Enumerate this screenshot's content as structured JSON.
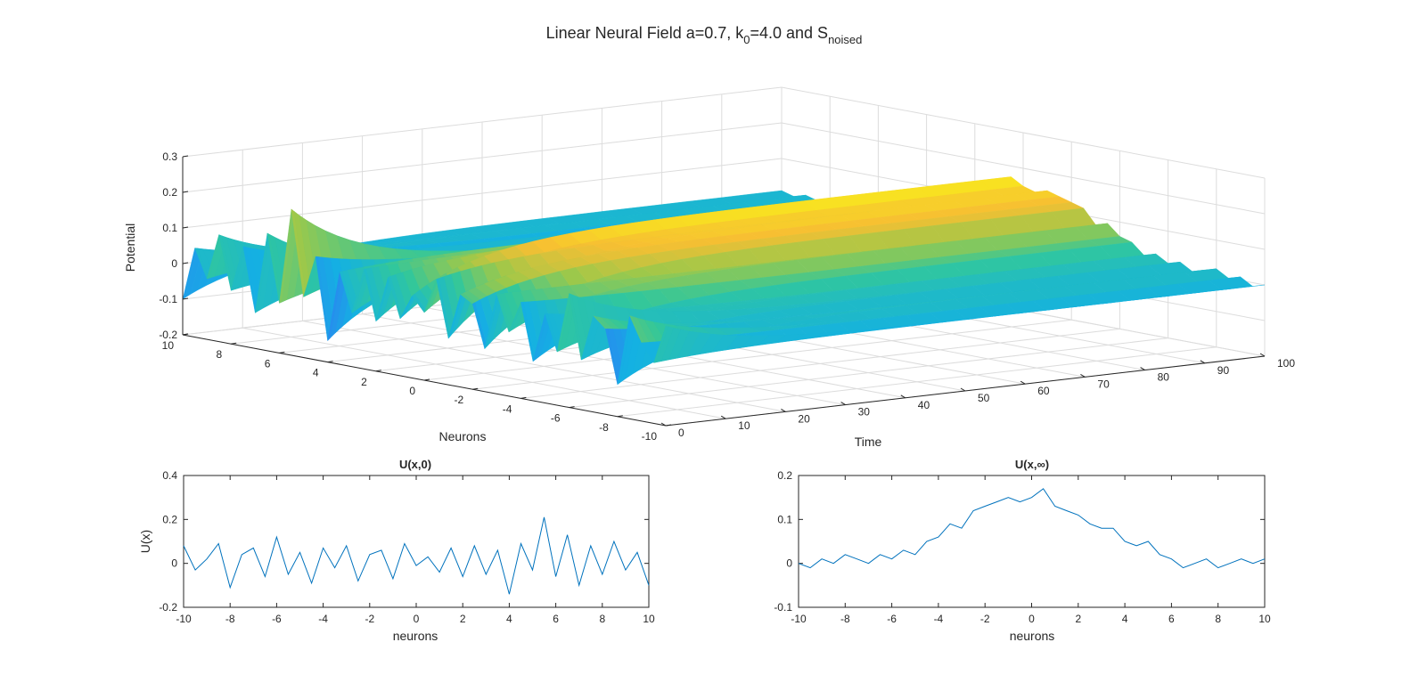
{
  "figure": {
    "title_main": "Linear Neural Field a=0.7, k",
    "title_k_sub": "0",
    "title_mid": "=4.0 and S",
    "title_s_sub": "noised",
    "colors": {
      "axis": "#262626",
      "grid": "#dcdcdc",
      "line": "#0072BD",
      "colormap": [
        "#3e26a8",
        "#2e7ff2",
        "#14b1e2",
        "#31c79c",
        "#9dc84a",
        "#f7bf32",
        "#f9fb15"
      ]
    }
  },
  "chart_data": [
    {
      "type": "surface",
      "title": "Linear Neural Field a=0.7, k0=4.0 and Snoised",
      "xlabel": "Time",
      "ylabel": "Neurons",
      "zlabel": "Potential",
      "xlim": [
        0,
        100
      ],
      "ylim": [
        -10,
        10
      ],
      "zlim": [
        -0.2,
        0.3
      ],
      "xticks": [
        "0",
        "10",
        "20",
        "30",
        "40",
        "50",
        "60",
        "70",
        "80",
        "90",
        "100"
      ],
      "yticks": [
        "-10",
        "-8",
        "-6",
        "-4",
        "-2",
        "0",
        "2",
        "4",
        "6",
        "8",
        "10"
      ],
      "zticks": [
        "-0.2",
        "-0.1",
        "0",
        "0.1",
        "0.2",
        "0.3"
      ],
      "description": "U(x,t) relaxes from noisy initial U(x,0) to smooth bump U(x,inf) peaking ~0.15 near x=0"
    },
    {
      "type": "line",
      "title": "U(x,0)",
      "xlabel": "neurons",
      "ylabel": "U(x)",
      "xlim": [
        -10,
        10
      ],
      "ylim": [
        -0.2,
        0.4
      ],
      "xticks": [
        "-10",
        "-8",
        "-6",
        "-4",
        "-2",
        "0",
        "2",
        "4",
        "6",
        "8",
        "10"
      ],
      "yticks": [
        "-0.2",
        "0",
        "0.2",
        "0.4"
      ],
      "series": [
        {
          "name": "U(x,0)",
          "x": [
            -10,
            -9.5,
            -9,
            -8.5,
            -8,
            -7.5,
            -7,
            -6.5,
            -6,
            -5.5,
            -5,
            -4.5,
            -4,
            -3.5,
            -3,
            -2.5,
            -2,
            -1.5,
            -1,
            -0.5,
            0,
            0.5,
            1,
            1.5,
            2,
            2.5,
            3,
            3.5,
            4,
            4.5,
            5,
            5.5,
            6,
            6.5,
            7,
            7.5,
            8,
            8.5,
            9,
            9.5,
            10
          ],
          "values": [
            0.08,
            -0.03,
            0.02,
            0.09,
            -0.11,
            0.04,
            0.07,
            -0.06,
            0.12,
            -0.05,
            0.05,
            -0.09,
            0.07,
            -0.02,
            0.08,
            -0.08,
            0.04,
            0.06,
            -0.07,
            0.09,
            -0.01,
            0.03,
            -0.04,
            0.07,
            -0.06,
            0.08,
            -0.05,
            0.06,
            -0.14,
            0.09,
            -0.03,
            0.21,
            -0.06,
            0.13,
            -0.1,
            0.08,
            -0.05,
            0.1,
            -0.03,
            0.05,
            -0.1
          ]
        }
      ]
    },
    {
      "type": "line",
      "title": "U(x,∞)",
      "xlabel": "neurons",
      "ylabel": "",
      "xlim": [
        -10,
        10
      ],
      "ylim": [
        -0.1,
        0.2
      ],
      "xticks": [
        "-10",
        "-8",
        "-6",
        "-4",
        "-2",
        "0",
        "2",
        "4",
        "6",
        "8",
        "10"
      ],
      "yticks": [
        "-0.1",
        "0",
        "0.1",
        "0.2"
      ],
      "series": [
        {
          "name": "U(x,∞)",
          "x": [
            -10,
            -9.5,
            -9,
            -8.5,
            -8,
            -7.5,
            -7,
            -6.5,
            -6,
            -5.5,
            -5,
            -4.5,
            -4,
            -3.5,
            -3,
            -2.5,
            -2,
            -1.5,
            -1,
            -0.5,
            0,
            0.5,
            1,
            1.5,
            2,
            2.5,
            3,
            3.5,
            4,
            4.5,
            5,
            5.5,
            6,
            6.5,
            7,
            7.5,
            8,
            8.5,
            9,
            9.5,
            10
          ],
          "values": [
            0.0,
            -0.01,
            0.01,
            0.0,
            0.02,
            0.01,
            0.0,
            0.02,
            0.01,
            0.03,
            0.02,
            0.05,
            0.06,
            0.09,
            0.08,
            0.12,
            0.13,
            0.14,
            0.15,
            0.14,
            0.15,
            0.17,
            0.13,
            0.12,
            0.11,
            0.09,
            0.08,
            0.08,
            0.05,
            0.04,
            0.05,
            0.02,
            0.01,
            -0.01,
            0.0,
            0.01,
            -0.01,
            0.0,
            0.01,
            0.0,
            0.01
          ]
        }
      ]
    }
  ]
}
